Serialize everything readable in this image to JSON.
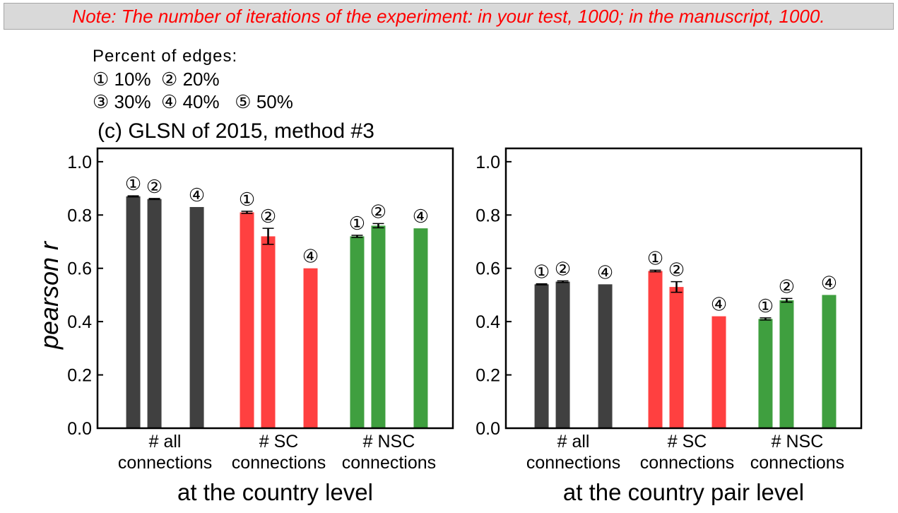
{
  "note": "Note: The number of iterations of the experiment: in your test, 1000; in the manuscript, 1000.",
  "legend": {
    "title": "Percent of edges:",
    "rows": [
      [
        "① 10%",
        "② 20%"
      ],
      [
        "③ 30%",
        "④ 40%",
        "⑤ 50%"
      ]
    ]
  },
  "colors": {
    "all": "#404040",
    "sc": "#ff4040",
    "nsc": "#3f9f3f",
    "note_text": "#ff0000",
    "note_bg": "#d9d9d9"
  },
  "chart_data": [
    {
      "type": "bar",
      "title": "(c) GLSN of 2015, method #3",
      "xlabel": "at the country level",
      "ylabel": "pearson r",
      "ylim": [
        0,
        1.05
      ],
      "yticks": [
        "0.0",
        "0.2",
        "0.4",
        "0.6",
        "0.8",
        "1.0"
      ],
      "categories": [
        "# all\nconnections",
        "# SC\nconnections",
        "# NSC\nconnections"
      ],
      "series": [
        {
          "values": [
            0.87,
            0.81,
            0.72
          ],
          "errors": [
            0.002,
            0.004,
            0.004
          ],
          "markers": [
            "①",
            "①",
            "①"
          ]
        },
        {
          "values": [
            0.86,
            0.72,
            0.76
          ],
          "errors": [
            0.002,
            0.03,
            0.008
          ],
          "markers": [
            "②",
            "②",
            "②"
          ]
        },
        {
          "values": [
            null,
            null,
            null
          ],
          "errors": [
            null,
            null,
            null
          ],
          "markers": [
            "",
            "",
            ""
          ]
        },
        {
          "values": [
            0.83,
            0.6,
            0.75
          ],
          "errors": [
            null,
            null,
            null
          ],
          "markers": [
            "④",
            "④",
            "④"
          ]
        }
      ],
      "grid": false
    },
    {
      "type": "bar",
      "title": "",
      "xlabel": "at the country pair level",
      "ylabel": "",
      "ylim": [
        0,
        1.05
      ],
      "yticks": [
        "0.0",
        "0.2",
        "0.4",
        "0.6",
        "0.8",
        "1.0"
      ],
      "categories": [
        "# all\nconnections",
        "# SC\nconnections",
        "# NSC\nconnections"
      ],
      "series": [
        {
          "values": [
            0.54,
            0.59,
            0.41
          ],
          "errors": [
            0.002,
            0.003,
            0.004
          ],
          "markers": [
            "①",
            "①",
            "①"
          ]
        },
        {
          "values": [
            0.55,
            0.53,
            0.48
          ],
          "errors": [
            0.003,
            0.02,
            0.007
          ],
          "markers": [
            "②",
            "②",
            "②"
          ]
        },
        {
          "values": [
            null,
            null,
            null
          ],
          "errors": [
            null,
            null,
            null
          ],
          "markers": [
            "",
            "",
            ""
          ]
        },
        {
          "values": [
            0.54,
            0.42,
            0.5
          ],
          "errors": [
            null,
            null,
            null
          ],
          "markers": [
            "④",
            "④",
            "④"
          ]
        }
      ],
      "grid": false
    }
  ]
}
